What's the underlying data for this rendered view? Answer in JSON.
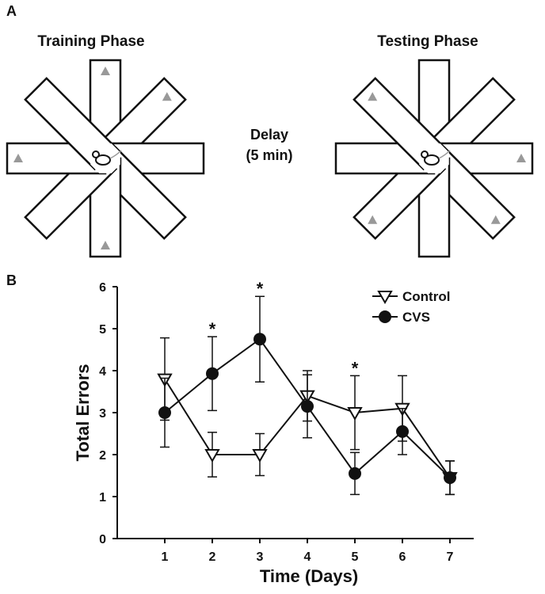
{
  "panel_a": {
    "label": "A",
    "training_title": "Training Phase",
    "testing_title": "Testing Phase",
    "delay_line1": "Delay",
    "delay_line2": "(5 min)"
  },
  "chart_data": {
    "type": "line",
    "panel_label": "B",
    "x_label": "Time (Days)",
    "y_label": "Total Errors",
    "x": [
      1,
      2,
      3,
      4,
      5,
      6,
      7
    ],
    "xlim": [
      0,
      7.5
    ],
    "xticks": [
      1,
      2,
      3,
      4,
      5,
      6,
      7
    ],
    "ylim": [
      0,
      6
    ],
    "yticks": [
      0,
      1,
      2,
      3,
      4,
      5,
      6
    ],
    "legend": "top-right",
    "series": [
      {
        "name": "Control",
        "color": "#111111",
        "marker": "open-triangle-down",
        "values": [
          3.8,
          2,
          2,
          3.4,
          3,
          3.1,
          1.45
        ],
        "errors": [
          0.98,
          0.53,
          0.5,
          0.6,
          0.88,
          0.78,
          0.4
        ]
      },
      {
        "name": "CVS",
        "color": "#111111",
        "marker": "filled-circle",
        "values": [
          3,
          3.93,
          4.75,
          3.15,
          1.55,
          2.55,
          1.45
        ],
        "errors": [
          0.82,
          0.88,
          1.02,
          0.75,
          0.5,
          0.55,
          0.4
        ]
      }
    ],
    "annotations": [
      {
        "x": 2,
        "text": "*"
      },
      {
        "x": 3,
        "text": "*"
      },
      {
        "x": 5,
        "text": "*"
      }
    ]
  }
}
